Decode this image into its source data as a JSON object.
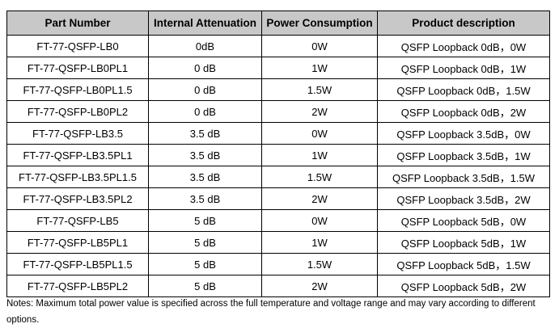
{
  "headers": [
    "Part Number",
    "Internal Attenuation",
    "Power Consumption",
    "Product description"
  ],
  "rows": [
    [
      "FT-77-QSFP-LB0",
      "0dB",
      "0W",
      "QSFP Loopback 0dB，0W"
    ],
    [
      "FT-77-QSFP-LB0PL1",
      "0 dB",
      "1W",
      "QSFP Loopback 0dB，1W"
    ],
    [
      "FT-77-QSFP-LB0PL1.5",
      "0 dB",
      "1.5W",
      "QSFP Loopback 0dB，1.5W"
    ],
    [
      "FT-77-QSFP-LB0PL2",
      "0 dB",
      "2W",
      "QSFP Loopback 0dB，2W"
    ],
    [
      "FT-77-QSFP-LB3.5",
      "3.5 dB",
      "0W",
      "QSFP Loopback 3.5dB，0W"
    ],
    [
      "FT-77-QSFP-LB3.5PL1",
      "3.5 dB",
      "1W",
      "QSFP Loopback 3.5dB，1W"
    ],
    [
      "FT-77-QSFP-LB3.5PL1.5",
      "3.5 dB",
      "1.5W",
      "QSFP Loopback 3.5dB，1.5W"
    ],
    [
      "FT-77-QSFP-LB3.5PL2",
      "3.5 dB",
      "2W",
      "QSFP Loopback 3.5dB，2W"
    ],
    [
      "FT-77-QSFP-LB5",
      "5 dB",
      "0W",
      "QSFP Loopback 5dB，0W"
    ],
    [
      "FT-77-QSFP-LB5PL1",
      "5 dB",
      "1W",
      "QSFP Loopback 5dB，1W"
    ],
    [
      "FT-77-QSFP-LB5PL1.5",
      "5 dB",
      "1.5W",
      "QSFP Loopback 5dB，1.5W"
    ],
    [
      "FT-77-QSFP-LB5PL2",
      "5 dB",
      "2W",
      "QSFP Loopback 5dB，2W"
    ]
  ],
  "notes": "Notes: Maximum total power value is specified across the full temperature and voltage range and may vary according to different options."
}
